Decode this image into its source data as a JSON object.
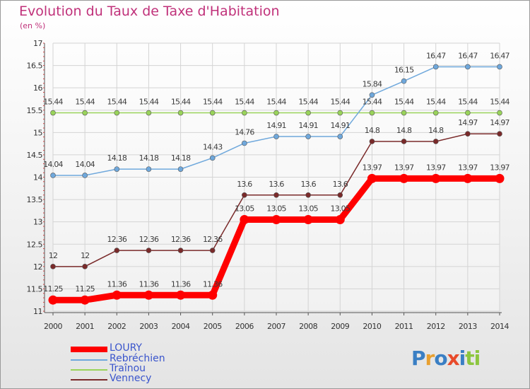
{
  "chart_data": {
    "type": "line",
    "title": "Evolution du Taux de Taxe d'Habitation",
    "subtitle": "(en %)",
    "x": [
      "2000",
      "2001",
      "2002",
      "2003",
      "2004",
      "2005",
      "2006",
      "2007",
      "2008",
      "2009",
      "2010",
      "2011",
      "2012",
      "2013",
      "2014"
    ],
    "ylim": [
      11,
      17
    ],
    "yticks": [
      "11",
      "11.5",
      "12",
      "12.5",
      "13",
      "13.5",
      "14",
      "14.5",
      "15",
      "15.5",
      "16",
      "16.5",
      "17"
    ],
    "grid": true,
    "legend_position": "bottom-left",
    "series": [
      {
        "name": "LOURY",
        "color": "#ff0000",
        "values": [
          11.25,
          11.25,
          11.36,
          11.36,
          11.36,
          11.36,
          13.05,
          13.05,
          13.05,
          13.05,
          13.97,
          13.97,
          13.97,
          13.97,
          13.97
        ],
        "labels": [
          "11.25",
          "11.25",
          "11.36",
          "11.36",
          "11.36",
          "11.36",
          "13.05",
          "13.05",
          "13.05",
          "13.05",
          "13.97",
          "13.97",
          "13.97",
          "13.97",
          "13.97"
        ]
      },
      {
        "name": "Rebréchien",
        "color": "#6fa8dc",
        "values": [
          14.04,
          14.04,
          14.18,
          14.18,
          14.18,
          14.43,
          14.76,
          14.91,
          14.91,
          14.91,
          15.84,
          16.15,
          16.47,
          16.47,
          16.47
        ],
        "labels": [
          "14.04",
          "14.04",
          "14.18",
          "14.18",
          "14.18",
          "14.43",
          "14.76",
          "14.91",
          "14.91",
          "14.91",
          "15.84",
          "16.15",
          "16.47",
          "16.47",
          "16.47"
        ]
      },
      {
        "name": "Traînou",
        "color": "#99d35a",
        "values": [
          15.44,
          15.44,
          15.44,
          15.44,
          15.44,
          15.44,
          15.44,
          15.44,
          15.44,
          15.44,
          15.44,
          15.44,
          15.44,
          15.44,
          15.44
        ],
        "labels": [
          "15.44",
          "15.44",
          "15.44",
          "15.44",
          "15.44",
          "15.44",
          "15.44",
          "15.44",
          "15.44",
          "15.44",
          "15.44",
          "15.44",
          "15.44",
          "15.44",
          "15.44"
        ]
      },
      {
        "name": "Vennecy",
        "color": "#7a2a2a",
        "values": [
          12,
          12,
          12.36,
          12.36,
          12.36,
          12.36,
          13.6,
          13.6,
          13.6,
          13.6,
          14.8,
          14.8,
          14.8,
          14.97,
          14.97
        ],
        "labels": [
          "12",
          "12",
          "12.36",
          "12.36",
          "12.36",
          "12.36",
          "13.6",
          "13.6",
          "13.6",
          "13.6",
          "14.8",
          "14.8",
          "14.8",
          "14.97",
          "14.97"
        ]
      }
    ]
  },
  "logo": {
    "letters": [
      "P",
      "r",
      "o",
      "x",
      "i",
      "t",
      "i"
    ],
    "colors": [
      "#3a7fc4",
      "#e8a030",
      "#3a7fc4",
      "#e84a2a",
      "#3a7fc4",
      "#8dc63f",
      "#8dc63f"
    ]
  }
}
